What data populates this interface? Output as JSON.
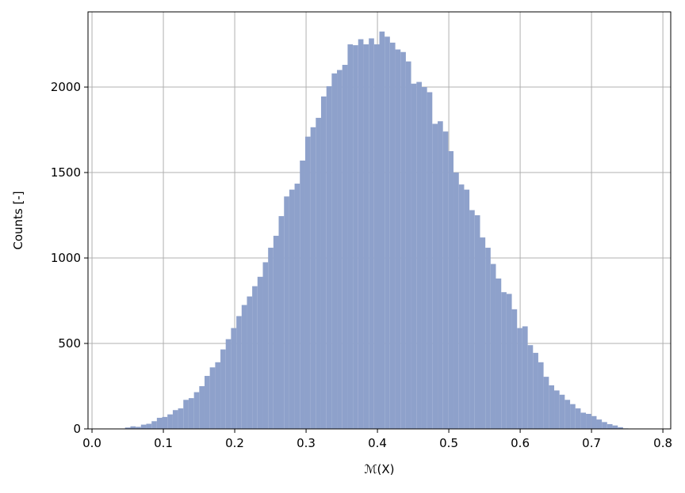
{
  "chart_data": {
    "type": "histogram",
    "xlabel": "ℳ(X)",
    "ylabel": "Counts [-]",
    "color": "#8ea1cb",
    "grid": true,
    "xlim": [
      -0.0056,
      0.811
    ],
    "ylim": [
      0,
      2440
    ],
    "xticks": [
      {
        "value": 0,
        "label": "0.0"
      },
      0.1,
      0.2,
      0.3,
      0.4,
      0.5,
      0.6,
      0.7,
      0.8
    ],
    "yticks": [
      0,
      500,
      1000,
      1500,
      2000
    ],
    "bins": [
      0.0315,
      0.0389,
      0.0463,
      0.0538,
      0.0612,
      0.0686,
      0.076,
      0.0835,
      0.0909,
      0.0983,
      0.1057,
      0.1132,
      0.1206,
      0.128,
      0.1354,
      0.1429,
      0.1503,
      0.1577,
      0.1651,
      0.1726,
      0.18,
      0.1874,
      0.1948,
      0.2023,
      0.2097,
      0.2171,
      0.2245,
      0.2319,
      0.2394,
      0.2468,
      0.2542,
      0.2616,
      0.2691,
      0.2765,
      0.2839,
      0.2913,
      0.2988,
      0.3062,
      0.3136,
      0.321,
      0.3285,
      0.3359,
      0.3433,
      0.3507,
      0.3582,
      0.3656,
      0.373,
      0.3804,
      0.3879,
      0.3953,
      0.4027,
      0.4101,
      0.4175,
      0.425,
      0.4324,
      0.4398,
      0.4472,
      0.4547,
      0.4621,
      0.4695,
      0.4769,
      0.4844,
      0.4918,
      0.4992,
      0.5066,
      0.5141,
      0.5215,
      0.5289,
      0.5363,
      0.5438,
      0.5512,
      0.5586,
      0.566,
      0.5735,
      0.5809,
      0.5883,
      0.5957,
      0.6031,
      0.6106,
      0.618,
      0.6254,
      0.6328,
      0.6403,
      0.6477,
      0.6551,
      0.6625,
      0.67,
      0.6774,
      0.6848,
      0.6922,
      0.6997,
      0.7071,
      0.7145,
      0.7219,
      0.7294,
      0.7368,
      0.7442,
      0.7516,
      0.7591,
      0.7665,
      0.7739
    ],
    "values": [
      1,
      0,
      8,
      15,
      12,
      25,
      30,
      45,
      65,
      70,
      85,
      110,
      120,
      170,
      180,
      215,
      250,
      310,
      360,
      390,
      465,
      525,
      590,
      660,
      725,
      775,
      835,
      890,
      975,
      1060,
      1130,
      1245,
      1360,
      1400,
      1435,
      1570,
      1710,
      1765,
      1820,
      1945,
      2005,
      2080,
      2100,
      2130,
      2250,
      2245,
      2280,
      2250,
      2285,
      2250,
      2325,
      2295,
      2260,
      2220,
      2205,
      2150,
      2020,
      2030,
      2000,
      1970,
      1785,
      1800,
      1740,
      1625,
      1500,
      1430,
      1400,
      1280,
      1250,
      1120,
      1060,
      965,
      880,
      800,
      790,
      700,
      590,
      600,
      490,
      445,
      390,
      305,
      255,
      225,
      200,
      170,
      145,
      120,
      95,
      88,
      75,
      55,
      40,
      28,
      20,
      10,
      3,
      0,
      0,
      1
    ]
  }
}
